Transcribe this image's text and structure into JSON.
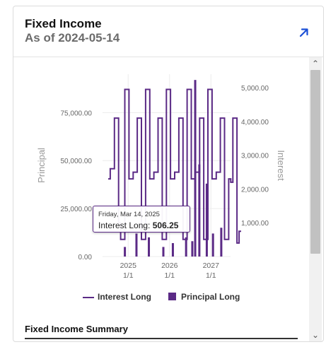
{
  "header": {
    "title": "Fixed Income",
    "subtitle": "As of 2024-05-14",
    "expand_icon": "arrow-up-right-icon",
    "accent": "#1a4fd6"
  },
  "scroll": {
    "up_icon": "chevron-up-icon",
    "down_icon": "chevron-down-icon",
    "up_glyph": "⌃",
    "down_glyph": "⌄"
  },
  "chart_data": {
    "type": "bar",
    "left_axis": {
      "label": "Principal",
      "ticks": [
        "0.00",
        "25,000.00",
        "50,000.00",
        "75,000.00"
      ],
      "range": [
        0,
        95000
      ]
    },
    "right_axis": {
      "label": "Interest",
      "ticks": [
        "1,000.00",
        "2,000.00",
        "3,000.00",
        "4,000.00",
        "5,000.00"
      ],
      "range": [
        0,
        5400
      ]
    },
    "x_ticks": [
      {
        "label": "2025",
        "sub": "1/1"
      },
      {
        "label": "2026",
        "sub": "1/1"
      },
      {
        "label": "2027",
        "sub": "1/1"
      }
    ],
    "grid": true,
    "legend_position": "bottom",
    "color": "#5b2a86",
    "series": [
      {
        "name": "Interest Long",
        "kind": "step-line",
        "axis": "right",
        "values": [
          2300,
          2600,
          2600,
          4100,
          4100,
          1000,
          506.25,
          506.25,
          4950,
          4950,
          2300,
          2300,
          2500,
          2500,
          4100,
          4100,
          506.25,
          506.25,
          4950,
          4950,
          2300,
          2300,
          2500,
          2500,
          4100,
          4100,
          506.25,
          506.25,
          4950,
          4950,
          2300,
          2300,
          2500,
          2500,
          4100,
          4100,
          506.25,
          506.25,
          4950,
          4950,
          2300,
          2300,
          2500,
          2500,
          4100,
          4100,
          506.25,
          506.25,
          4950,
          4950,
          2300,
          2300,
          2500,
          2500,
          4100,
          4100,
          506.25,
          506.25,
          2300,
          2200,
          4100,
          4100,
          400,
          750
        ]
      },
      {
        "name": "Principal Long",
        "kind": "bar",
        "axis": "left",
        "values": [
          {
            "x": 2024.92,
            "value": 5000
          },
          {
            "x": 2025.2,
            "value": 12000
          },
          {
            "x": 2025.5,
            "value": 10000
          },
          {
            "x": 2025.85,
            "value": 5000
          },
          {
            "x": 2026.08,
            "value": 7000
          },
          {
            "x": 2026.4,
            "value": 10000
          },
          {
            "x": 2026.55,
            "value": 8000
          },
          {
            "x": 2026.62,
            "value": 92000
          },
          {
            "x": 2026.72,
            "value": 48000
          },
          {
            "x": 2026.9,
            "value": 38000
          },
          {
            "x": 2027.05,
            "value": 12000
          },
          {
            "x": 2027.25,
            "value": 15000
          }
        ]
      }
    ]
  },
  "tooltip": {
    "date": "Friday, Mar 14, 2025",
    "label": "Interest Long:",
    "value": "506.25"
  },
  "legend": {
    "interest": "Interest Long",
    "principal": "Principal Long"
  },
  "summary": {
    "title": "Fixed Income Summary"
  }
}
